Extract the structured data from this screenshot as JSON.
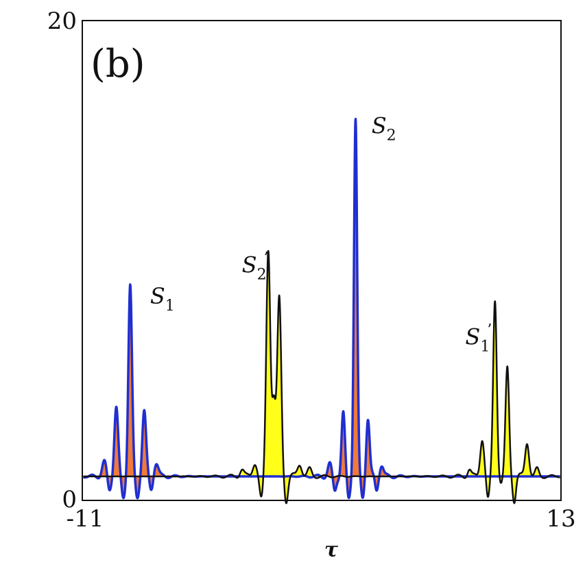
{
  "chart_data": {
    "type": "area",
    "panel_label": "(b)",
    "xlabel": "τ",
    "xlim": [
      -11,
      13
    ],
    "ylim": [
      0,
      20
    ],
    "x_ticks": [
      "-11",
      "13"
    ],
    "y_ticks": [
      "0",
      "20"
    ],
    "baseline": 1,
    "colors": {
      "blue_curve": "#1f2fd0",
      "black_curve": "#111111",
      "orange_fill": "#f07a3a",
      "yellow_fill": "#ffff1a"
    },
    "peaks": [
      {
        "id": "S1",
        "x": -8.6,
        "height": 8.0,
        "sigma": 0.09,
        "side_amp": 2.9,
        "side_offset": 0.7,
        "minor_amp": 0.6,
        "curve": "blue_curve",
        "fill": "orange_fill"
      },
      {
        "id": "S2",
        "x": 2.7,
        "height": 14.9,
        "sigma": 0.08,
        "side_amp": 2.6,
        "side_offset": 0.62,
        "minor_amp": 0.5,
        "curve": "blue_curve",
        "fill": "orange_fill"
      },
      {
        "id": "S2p",
        "x": -1.4,
        "height": 9.5,
        "height2": 7.4,
        "sep": 0.55,
        "sigma": 0.1,
        "dip": 3.0,
        "side_amp": 0.6,
        "curve": "black_curve",
        "fill": "yellow_fill"
      },
      {
        "id": "S1p",
        "x": 10.0,
        "height": 7.4,
        "height2": 4.5,
        "sep": 0.62,
        "sigma": 0.09,
        "dip": -0.3,
        "side_amp": 1.6,
        "curve": "black_curve",
        "fill": "yellow_fill"
      }
    ],
    "annotations": [
      {
        "id": "S1",
        "base": "S",
        "sub": "1",
        "sup": "",
        "x": -7.6,
        "y": 8.2
      },
      {
        "id": "S2",
        "base": "S",
        "sub": "2",
        "sup": "",
        "x": 3.5,
        "y": 15.3
      },
      {
        "id": "S2p",
        "base": "S",
        "sub": "2",
        "sup": "’",
        "x": -3.0,
        "y": 9.5
      },
      {
        "id": "S1p",
        "base": "S",
        "sub": "1",
        "sup": "’",
        "x": 8.2,
        "y": 6.5
      }
    ]
  }
}
